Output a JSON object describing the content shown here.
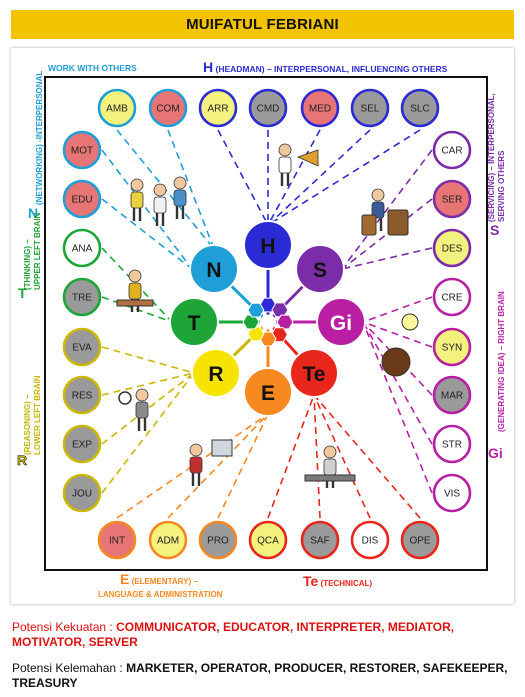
{
  "title": "MUIFATUL FEBRIANI",
  "labels": {
    "work_with_others": "WORK WITH OTHERS",
    "h_letter": "H",
    "h_desc": " (HEADMAN) – INTERPERSONAL, INFLUENCING OTHERS",
    "n_letter": "N",
    "n_desc": "(NETWORKING) -INTERPERSONAL",
    "t_letter": "T",
    "t_desc1": "(THINKING) –",
    "t_desc2": "UPPER LEFT BRAIN",
    "r_letter": "R",
    "r_desc1": "(REASONING) –",
    "r_desc2": "LOWER LEFT BRAIN",
    "s_letter": "S",
    "s_desc1": "(SERVICING) – INTERPERSONAL,",
    "s_desc2": "SERVING OTHERS",
    "gi_letter": "Gi",
    "gi_desc": "(GENERATING IDEA) – RIGHT BRAIN",
    "e_letter": "E",
    "e_desc1": " (ELEMENTARY) –",
    "e_desc2": "LANGUAGE & ADMINISTRATION",
    "te_letter": "Te",
    "te_desc": " (TECHNICAL)"
  },
  "hub": [
    {
      "label": "H",
      "color": "#2b2bd6",
      "text_color": "#111111"
    },
    {
      "label": "S",
      "color": "#7b2ca8",
      "text_color": "#111111"
    },
    {
      "label": "Gi",
      "color": "#b81fa3",
      "text_color": "#ffffff"
    },
    {
      "label": "Te",
      "color": "#e8261b",
      "text_color": "#111111"
    },
    {
      "label": "E",
      "color": "#f5881f",
      "text_color": "#111111"
    },
    {
      "label": "R",
      "color": "#f6e300",
      "text_color": "#111111"
    },
    {
      "label": "T",
      "color": "#1ea538",
      "text_color": "#111111"
    },
    {
      "label": "N",
      "color": "#1e9fd8",
      "text_color": "#111111"
    }
  ],
  "top_row": [
    {
      "label": "AMB",
      "state": "yellow"
    },
    {
      "label": "COM",
      "state": "red"
    },
    {
      "label": "ARR",
      "state": "yellow"
    },
    {
      "label": "CMD",
      "state": "grey"
    },
    {
      "label": "MED",
      "state": "red"
    },
    {
      "label": "SEL",
      "state": "grey"
    },
    {
      "label": "SLC",
      "state": "grey"
    }
  ],
  "left_col": [
    {
      "label": "MOT",
      "state": "red"
    },
    {
      "label": "EDU",
      "state": "red"
    },
    {
      "label": "ANA",
      "state": "white"
    },
    {
      "label": "TRE",
      "state": "grey"
    },
    {
      "label": "EVA",
      "state": "grey"
    },
    {
      "label": "RES",
      "state": "grey"
    },
    {
      "label": "EXP",
      "state": "grey"
    },
    {
      "label": "JOU",
      "state": "grey"
    }
  ],
  "right_col": [
    {
      "label": "CAR",
      "state": "white"
    },
    {
      "label": "SER",
      "state": "red"
    },
    {
      "label": "DES",
      "state": "yellow"
    },
    {
      "label": "CRE",
      "state": "white"
    },
    {
      "label": "SYN",
      "state": "yellow"
    },
    {
      "label": "MAR",
      "state": "grey"
    },
    {
      "label": "STR",
      "state": "white"
    },
    {
      "label": "VIS",
      "state": "white"
    }
  ],
  "bottom_row": [
    {
      "label": "INT",
      "state": "red"
    },
    {
      "label": "ADM",
      "state": "yellow"
    },
    {
      "label": "PRO",
      "state": "grey"
    },
    {
      "label": "QCA",
      "state": "yellow"
    },
    {
      "label": "SAF",
      "state": "grey"
    },
    {
      "label": "DIS",
      "state": "white"
    },
    {
      "label": "OPE",
      "state": "grey"
    }
  ],
  "colors": {
    "red_fill": "#e87575",
    "yellow_fill": "#f4f27e",
    "grey_fill": "#9a9a9a",
    "white_fill": "#ffffff",
    "H": "#2b2bd6",
    "S": "#7b2ca8",
    "Gi": "#b81fa3",
    "Te": "#e8261b",
    "E": "#f5881f",
    "R": "#c9b700",
    "T": "#1ea538",
    "N": "#1e9fd8"
  },
  "strengths": {
    "prefix": "Potensi Kekuatan : ",
    "values": "COMMUNICATOR, EDUCATOR, INTERPRETER, MEDIATOR, MOTIVATOR, SERVER"
  },
  "weaknesses": {
    "prefix": "Potensi Kelemahan : ",
    "values": "MARKETER, OPERATOR, PRODUCER, RESTORER, SAFEKEEPER, TREASURY"
  }
}
